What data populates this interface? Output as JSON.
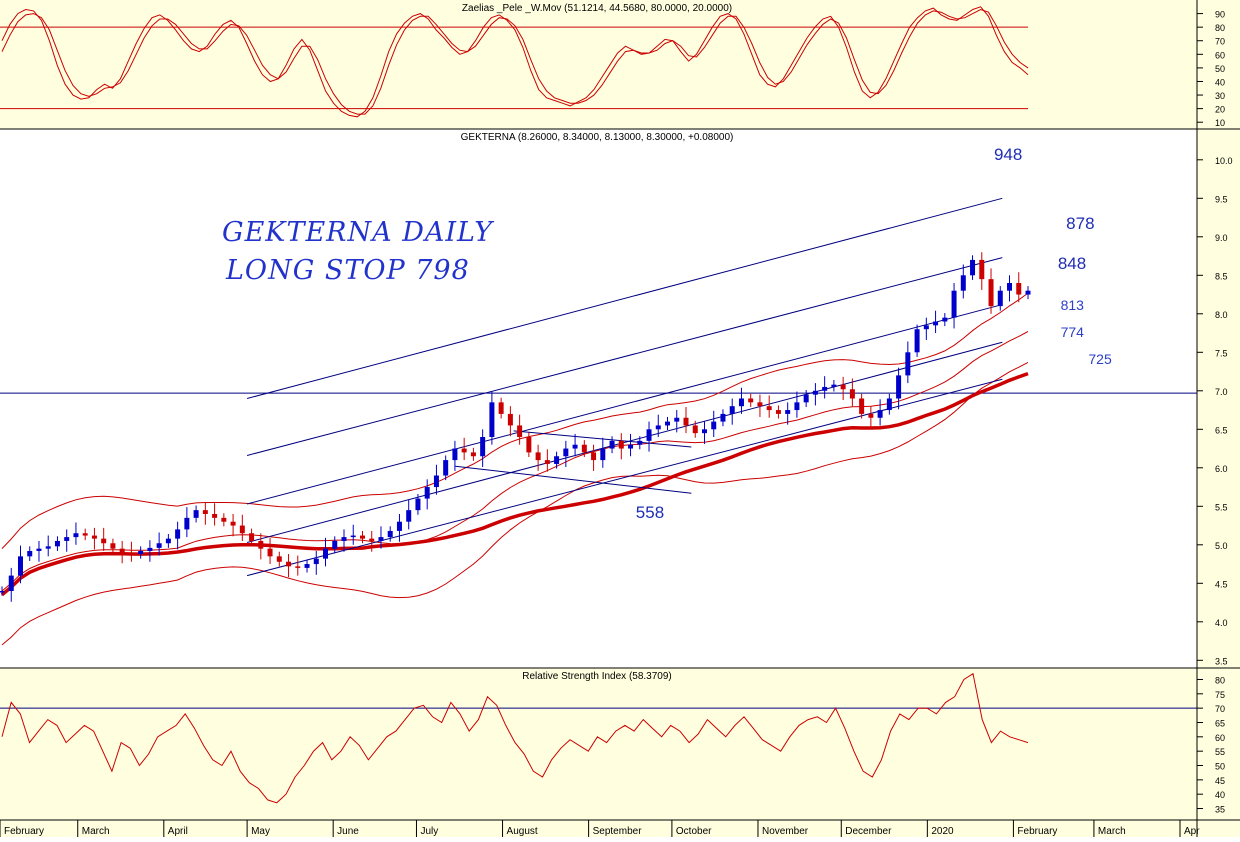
{
  "colors": {
    "panel_bg": "#FFFFE0",
    "price_bg": "#FFFFFF",
    "red": "#CC0000",
    "blue": "#0000CC",
    "navy": "#000080",
    "grid": "#000000"
  },
  "chart_data": [
    {
      "type": "line",
      "panel": "stochastic",
      "title": "Zaelias _Pele _W.Mov (51.1214, 44.5680, 80.0000, 20.0000)",
      "ylim": [
        5,
        100
      ],
      "yticks": [
        "90",
        "80",
        "70",
        "60",
        "50",
        "40",
        "30",
        "20",
        "10"
      ],
      "ytick_values": [
        90,
        80,
        70,
        60,
        50,
        40,
        30,
        20,
        10
      ],
      "hlines": [
        80,
        20
      ],
      "series": [
        {
          "values": [
            70,
            82,
            90,
            93,
            92,
            85,
            70,
            52,
            38,
            30,
            27,
            28,
            34,
            38,
            35,
            42,
            55,
            68,
            79,
            87,
            89,
            85,
            78,
            70,
            64,
            62,
            66,
            75,
            82,
            85,
            80,
            68,
            55,
            45,
            40,
            42,
            52,
            64,
            71,
            63,
            48,
            33,
            24,
            18,
            15,
            14,
            18,
            28,
            44,
            62,
            75,
            83,
            88,
            90,
            86,
            78,
            72,
            65,
            60,
            62,
            70,
            80,
            87,
            89,
            85,
            78,
            65,
            48,
            34,
            28,
            26,
            24,
            22,
            25,
            28,
            34,
            43,
            52,
            61,
            66,
            63,
            60,
            61,
            66,
            71,
            70,
            62,
            55,
            60,
            70,
            80,
            88,
            90,
            86,
            75,
            60,
            45,
            38,
            36,
            42,
            52,
            62,
            72,
            80,
            86,
            88,
            80,
            65,
            47,
            33,
            28,
            32,
            42,
            55,
            68,
            80,
            87,
            92,
            94,
            89,
            86,
            85,
            89,
            93,
            95,
            88,
            74,
            62,
            54,
            50,
            45
          ]
        },
        {
          "values": [
            62,
            74,
            84,
            89,
            90,
            87,
            78,
            63,
            48,
            37,
            31,
            29,
            31,
            35,
            36,
            39,
            48,
            60,
            72,
            81,
            86,
            86,
            82,
            75,
            68,
            64,
            64,
            70,
            77,
            82,
            81,
            74,
            63,
            52,
            45,
            42,
            47,
            57,
            66,
            66,
            56,
            42,
            31,
            23,
            18,
            16,
            16,
            22,
            35,
            52,
            67,
            78,
            85,
            88,
            88,
            82,
            75,
            68,
            63,
            62,
            66,
            74,
            82,
            87,
            86,
            81,
            71,
            56,
            42,
            33,
            28,
            26,
            24,
            24,
            26,
            30,
            37,
            46,
            55,
            62,
            63,
            61,
            61,
            63,
            68,
            70,
            66,
            59,
            58,
            65,
            74,
            83,
            88,
            88,
            80,
            68,
            54,
            43,
            38,
            40,
            47,
            57,
            67,
            75,
            82,
            86,
            83,
            72,
            56,
            41,
            32,
            31,
            37,
            48,
            61,
            73,
            83,
            89,
            92,
            91,
            88,
            86,
            87,
            90,
            93,
            91,
            81,
            69,
            60,
            54,
            50
          ]
        }
      ]
    },
    {
      "type": "line",
      "panel": "price",
      "title": "GEKTERNA (8.26000, 8.34000, 8.13000, 8.30000, +0.08000)",
      "ylim": [
        3.4,
        10.4
      ],
      "yticks": [
        "10.0",
        "9.5",
        "9.0",
        "8.5",
        "8.0",
        "7.5",
        "7.0",
        "6.5",
        "6.0",
        "5.5",
        "5.0",
        "4.5",
        "4.0",
        "3.5"
      ],
      "ytick_values": [
        10.0,
        9.5,
        9.0,
        8.5,
        8.0,
        7.5,
        7.0,
        6.5,
        6.0,
        5.5,
        5.0,
        4.5,
        4.0,
        3.5
      ],
      "close": [
        4.4,
        4.6,
        4.85,
        4.92,
        4.95,
        4.98,
        5.05,
        5.1,
        5.15,
        5.12,
        5.08,
        5.02,
        4.95,
        4.9,
        4.88,
        4.92,
        4.96,
        5.02,
        5.08,
        5.2,
        5.35,
        5.45,
        5.4,
        5.35,
        5.3,
        5.25,
        5.15,
        5.05,
        4.95,
        4.85,
        4.78,
        4.72,
        4.7,
        4.75,
        4.82,
        4.95,
        5.05,
        5.1,
        5.12,
        5.08,
        5.05,
        5.1,
        5.18,
        5.3,
        5.45,
        5.6,
        5.75,
        5.9,
        6.1,
        6.25,
        6.2,
        6.15,
        6.4,
        6.85,
        6.7,
        6.55,
        6.4,
        6.2,
        6.1,
        6.05,
        6.15,
        6.25,
        6.3,
        6.2,
        6.1,
        6.25,
        6.35,
        6.25,
        6.3,
        6.35,
        6.5,
        6.55,
        6.6,
        6.65,
        6.55,
        6.45,
        6.5,
        6.6,
        6.7,
        6.8,
        6.9,
        6.85,
        6.8,
        6.75,
        6.7,
        6.75,
        6.85,
        6.95,
        7.0,
        7.05,
        7.08,
        7.02,
        6.9,
        6.7,
        6.65,
        6.75,
        6.9,
        7.2,
        7.5,
        7.8,
        7.85,
        7.9,
        7.95,
        8.3,
        8.5,
        8.7,
        8.45,
        8.1,
        8.3,
        8.4,
        8.25,
        8.3
      ],
      "trend_channel": [
        {
          "x": [
            "2019-05-01",
            "2020-01-28"
          ],
          "y": [
            6.9,
            9.5
          ]
        },
        {
          "x": [
            "2019-05-01",
            "2020-01-28"
          ],
          "y": [
            6.16,
            8.73
          ]
        },
        {
          "x": [
            "2019-05-01",
            "2020-01-28"
          ],
          "y": [
            5.53,
            8.12
          ]
        },
        {
          "x": [
            "2019-05-01",
            "2020-01-28"
          ],
          "y": [
            5.03,
            7.63
          ]
        },
        {
          "x": [
            "2019-05-01",
            "2020-01-28"
          ],
          "y": [
            4.6,
            7.15
          ]
        }
      ],
      "support_line": 6.97,
      "fan_lines": [
        {
          "x": [
            "2019-07-15",
            "2019-10-08"
          ],
          "y": [
            6.02,
            5.67
          ]
        },
        {
          "x": [
            "2019-08-05",
            "2019-10-08"
          ],
          "y": [
            6.48,
            6.27
          ]
        }
      ],
      "annotations": [
        {
          "text": "948",
          "x": "2020-01-25",
          "y": 10.0,
          "size": "large"
        },
        {
          "text": "878",
          "x": "2020-02-20",
          "y": 9.1,
          "size": "large"
        },
        {
          "text": "848",
          "x": "2020-02-17",
          "y": 8.58,
          "size": "large"
        },
        {
          "text": "813",
          "x": "2020-02-18",
          "y": 8.05,
          "size": "small"
        },
        {
          "text": "774",
          "x": "2020-02-18",
          "y": 7.7,
          "size": "small"
        },
        {
          "text": "725",
          "x": "2020-02-28",
          "y": 7.35,
          "size": "small"
        },
        {
          "text": "558",
          "x": "2019-09-18",
          "y": 5.35,
          "size": "large"
        }
      ]
    },
    {
      "type": "line",
      "panel": "rsi",
      "title": "Relative Strength Index (58.3709)",
      "ylim": [
        31,
        84
      ],
      "yticks": [
        "80",
        "75",
        "70",
        "65",
        "60",
        "55",
        "50",
        "45",
        "40",
        "35"
      ],
      "ytick_values": [
        80,
        75,
        70,
        65,
        60,
        55,
        50,
        45,
        40,
        35
      ],
      "hlines": [
        70
      ],
      "series": [
        {
          "values": [
            60,
            72,
            68,
            58,
            62,
            66,
            64,
            58,
            61,
            64,
            62,
            55,
            48,
            58,
            56,
            50,
            54,
            60,
            62,
            64,
            68,
            63,
            57,
            52,
            50,
            55,
            48,
            44,
            42,
            38,
            37,
            40,
            46,
            50,
            55,
            58,
            52,
            55,
            60,
            57,
            52,
            56,
            60,
            62,
            66,
            70,
            71,
            67,
            65,
            72,
            68,
            62,
            66,
            74,
            71,
            64,
            58,
            54,
            48,
            46,
            52,
            56,
            59,
            57,
            55,
            60,
            58,
            62,
            64,
            62,
            66,
            63,
            60,
            64,
            62,
            58,
            61,
            66,
            63,
            60,
            64,
            67,
            63,
            59,
            57,
            55,
            60,
            64,
            66,
            67,
            65,
            70,
            63,
            55,
            48,
            46,
            52,
            62,
            68,
            66,
            70,
            70,
            68,
            72,
            74,
            80,
            82,
            66,
            58,
            62,
            60,
            59,
            58
          ]
        }
      ]
    }
  ],
  "title_note": {
    "line1": "GEKTERNA DAILY",
    "line2": "LONG STOP 798"
  },
  "months": [
    "February",
    "March",
    "April",
    "May",
    "June",
    "July",
    "August",
    "September",
    "October",
    "November",
    "December",
    "2020",
    "February",
    "March",
    "Apr"
  ]
}
